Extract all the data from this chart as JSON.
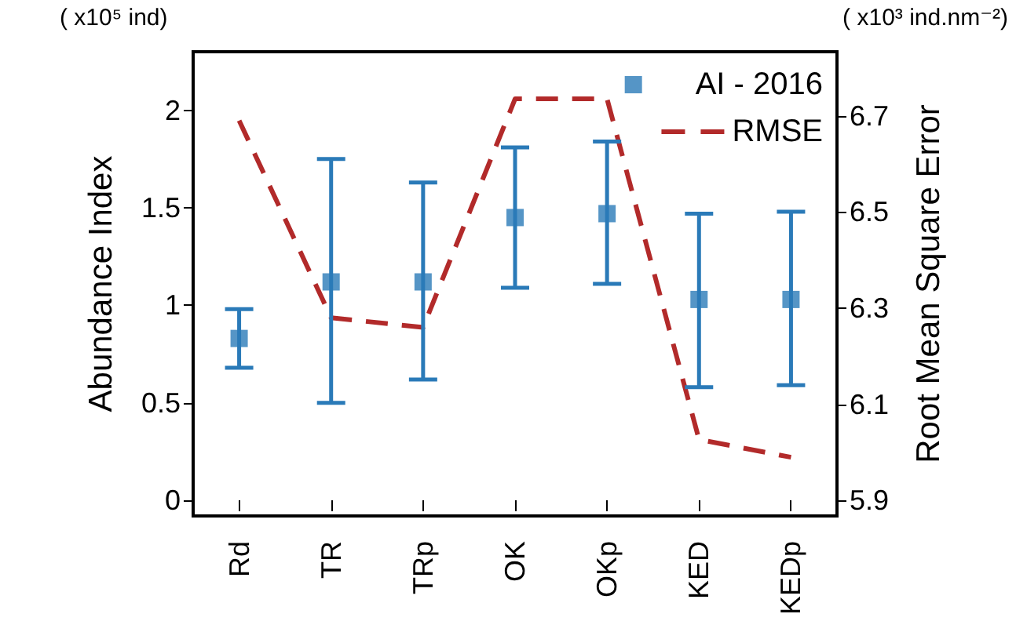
{
  "chart_data": {
    "type": "scatter",
    "xlabel": null,
    "ylabel": "Abundance Index",
    "y2label": "Root Mean Square Error",
    "annotations": [
      "( x10⁵ ind)",
      "( x10³ ind.nm⁻²)"
    ],
    "categories": [
      "Rd",
      "TR",
      "TRp",
      "OK",
      "OKp",
      "KED",
      "KEDp"
    ],
    "series": [
      {
        "name": "AI - 2016",
        "color": "#2a7ab8",
        "marker": "square",
        "values": [
          0.83,
          1.12,
          1.12,
          1.45,
          1.47,
          1.03,
          1.03
        ],
        "errors": [
          [
            0.68,
            0.98
          ],
          [
            0.5,
            1.75
          ],
          [
            0.62,
            1.63
          ],
          [
            1.09,
            1.81
          ],
          [
            1.11,
            1.84
          ],
          [
            0.58,
            1.47
          ],
          [
            0.59,
            1.48
          ]
        ]
      },
      {
        "name": "RMSE",
        "type": "line",
        "axis": "y2",
        "color": "#b22a2a",
        "marker": "none",
        "line_style": "dashed",
        "values": [
          6.69,
          6.28,
          6.26,
          6.735,
          6.735,
          6.027,
          5.99
        ]
      }
    ],
    "ylim": [
      -0.08,
      2.3
    ],
    "yticks": [
      0,
      0.5,
      1,
      1.5,
      2
    ],
    "y2lim": [
      5.868,
      6.833
    ],
    "y2ticks": [
      5.9,
      6.1,
      6.3,
      6.5,
      6.7
    ],
    "grid": false,
    "legend": "top right"
  }
}
